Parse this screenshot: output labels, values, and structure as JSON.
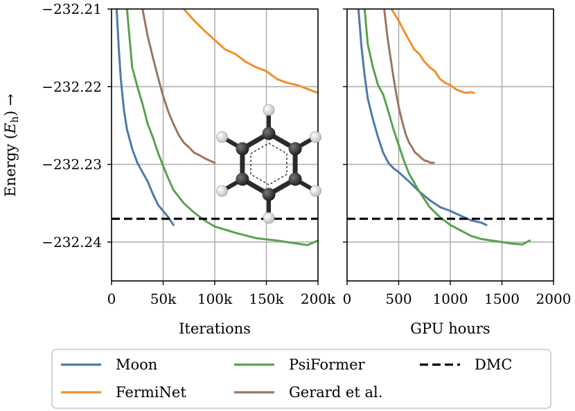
{
  "chart_data": [
    {
      "type": "line",
      "xlabel": "Iterations",
      "ylabel": "Energy (E_h) →",
      "xlim": [
        0,
        200000
      ],
      "ylim": [
        -232.245,
        -232.21
      ],
      "xticks": [
        0,
        50000,
        100000,
        150000,
        200000
      ],
      "xtick_labels": [
        "0",
        "50k",
        "100k",
        "150k",
        "200k"
      ],
      "yticks": [
        -232.21,
        -232.22,
        -232.23,
        -232.24
      ],
      "ytick_labels": [
        "−232.21",
        "−232.22",
        "−232.23",
        "−232.24"
      ],
      "grid": true,
      "reference": {
        "name": "DMC",
        "y": -232.237
      },
      "series": [
        {
          "name": "Moon",
          "x": [
            5000,
            7000,
            9000,
            12000,
            15000,
            20000,
            25000,
            30000,
            35000,
            40000,
            45000,
            50000,
            55000,
            60000
          ],
          "y": [
            -232.21,
            -232.215,
            -232.219,
            -232.223,
            -232.2255,
            -232.228,
            -232.2298,
            -232.231,
            -232.2322,
            -232.2338,
            -232.2352,
            -232.236,
            -232.2368,
            -232.2378
          ]
        },
        {
          "name": "FermiNet",
          "x": [
            70000,
            80000,
            90000,
            100000,
            110000,
            120000,
            130000,
            140000,
            150000,
            160000,
            170000,
            180000,
            190000,
            200000
          ],
          "y": [
            -232.21,
            -232.2115,
            -232.2128,
            -232.214,
            -232.2152,
            -232.2158,
            -232.2168,
            -232.2175,
            -232.218,
            -232.219,
            -232.2195,
            -232.2198,
            -232.2203,
            -232.2208
          ]
        },
        {
          "name": "PsiFormer",
          "x": [
            15000,
            20000,
            25000,
            30000,
            35000,
            40000,
            45000,
            50000,
            55000,
            60000,
            70000,
            80000,
            90000,
            100000,
            120000,
            140000,
            160000,
            180000,
            190000,
            200000
          ],
          "y": [
            -232.21,
            -232.2175,
            -232.22,
            -232.2222,
            -232.2248,
            -232.2265,
            -232.2285,
            -232.2302,
            -232.2318,
            -232.2333,
            -232.235,
            -232.2362,
            -232.2372,
            -232.238,
            -232.2388,
            -232.2395,
            -232.2398,
            -232.2402,
            -232.2404,
            -232.2398
          ]
        },
        {
          "name": "Gerard et al.",
          "x": [
            30000,
            35000,
            40000,
            45000,
            50000,
            55000,
            60000,
            65000,
            70000,
            75000,
            80000,
            85000,
            90000,
            95000,
            100000
          ],
          "y": [
            -232.21,
            -232.2135,
            -232.2162,
            -232.2188,
            -232.2212,
            -232.2232,
            -232.2248,
            -232.2262,
            -232.2272,
            -232.2278,
            -232.2285,
            -232.2288,
            -232.2292,
            -232.2295,
            -232.2298
          ]
        }
      ]
    },
    {
      "type": "line",
      "xlabel": "GPU hours",
      "ylabel": "",
      "xlim": [
        0,
        2000
      ],
      "ylim": [
        -232.245,
        -232.21
      ],
      "xticks": [
        0,
        500,
        1000,
        1500,
        2000
      ],
      "xtick_labels": [
        "0",
        "500",
        "1000",
        "1500",
        "2000"
      ],
      "yticks": [
        -232.21,
        -232.22,
        -232.23,
        -232.24
      ],
      "grid": true,
      "reference": {
        "name": "DMC",
        "y": -232.237
      },
      "series": [
        {
          "name": "Moon",
          "x": [
            110,
            140,
            170,
            200,
            250,
            300,
            350,
            400,
            450,
            500,
            600,
            700,
            800,
            900,
            1000,
            1100,
            1200,
            1300,
            1350
          ],
          "y": [
            -232.21,
            -232.215,
            -232.2185,
            -232.2215,
            -232.2242,
            -232.2265,
            -232.2285,
            -232.2298,
            -232.2305,
            -232.231,
            -232.2322,
            -232.2335,
            -232.2346,
            -232.2355,
            -232.236,
            -232.2366,
            -232.2372,
            -232.2375,
            -232.2378
          ]
        },
        {
          "name": "FermiNet",
          "x": [
            430,
            500,
            550,
            600,
            650,
            700,
            750,
            800,
            850,
            900,
            950,
            1000,
            1050,
            1100,
            1150,
            1200,
            1230
          ],
          "y": [
            -232.21,
            -232.2115,
            -232.2128,
            -232.214,
            -232.2152,
            -232.2158,
            -232.2168,
            -232.2175,
            -232.218,
            -232.219,
            -232.2195,
            -232.2198,
            -232.2203,
            -232.2206,
            -232.2208,
            -232.2207,
            -232.2208
          ]
        },
        {
          "name": "PsiFormer",
          "x": [
            170,
            200,
            250,
            300,
            350,
            400,
            450,
            500,
            550,
            600,
            700,
            800,
            900,
            1000,
            1100,
            1200,
            1300,
            1400,
            1500,
            1600,
            1700,
            1770
          ],
          "y": [
            -232.21,
            -232.2145,
            -232.2175,
            -232.2198,
            -232.221,
            -232.2232,
            -232.2255,
            -232.2275,
            -232.2295,
            -232.2312,
            -232.2335,
            -232.2355,
            -232.2368,
            -232.2378,
            -232.2385,
            -232.2392,
            -232.2396,
            -232.2398,
            -232.24,
            -232.2402,
            -232.2403,
            -232.2398
          ]
        },
        {
          "name": "Gerard et al.",
          "x": [
            360,
            390,
            420,
            450,
            480,
            510,
            540,
            570,
            600,
            630,
            660,
            690,
            720,
            750,
            780,
            810,
            840
          ],
          "y": [
            -232.21,
            -232.2135,
            -232.2162,
            -232.2188,
            -232.2212,
            -232.2232,
            -232.2248,
            -232.2262,
            -232.2272,
            -232.2278,
            -232.2285,
            -232.2288,
            -232.2292,
            -232.2295,
            -232.2296,
            -232.2298,
            -232.2298
          ]
        }
      ]
    }
  ],
  "colors": {
    "Moon": "#4e79a7",
    "FermiNet": "#f28e2b",
    "PsiFormer": "#59a14f",
    "Gerard et al.": "#9c755f",
    "DMC": "#000000"
  },
  "inset": {
    "name": "benzene-molecule",
    "atom_color": "#333333",
    "hydrogen_color": "#f0f0f0"
  },
  "legend": {
    "position": "bottom",
    "entries": [
      {
        "name": "Moon",
        "style": "solid"
      },
      {
        "name": "PsiFormer",
        "style": "solid"
      },
      {
        "name": "DMC",
        "style": "dashed"
      },
      {
        "name": "FermiNet",
        "style": "solid"
      },
      {
        "name": "Gerard et al.",
        "style": "solid"
      }
    ]
  }
}
